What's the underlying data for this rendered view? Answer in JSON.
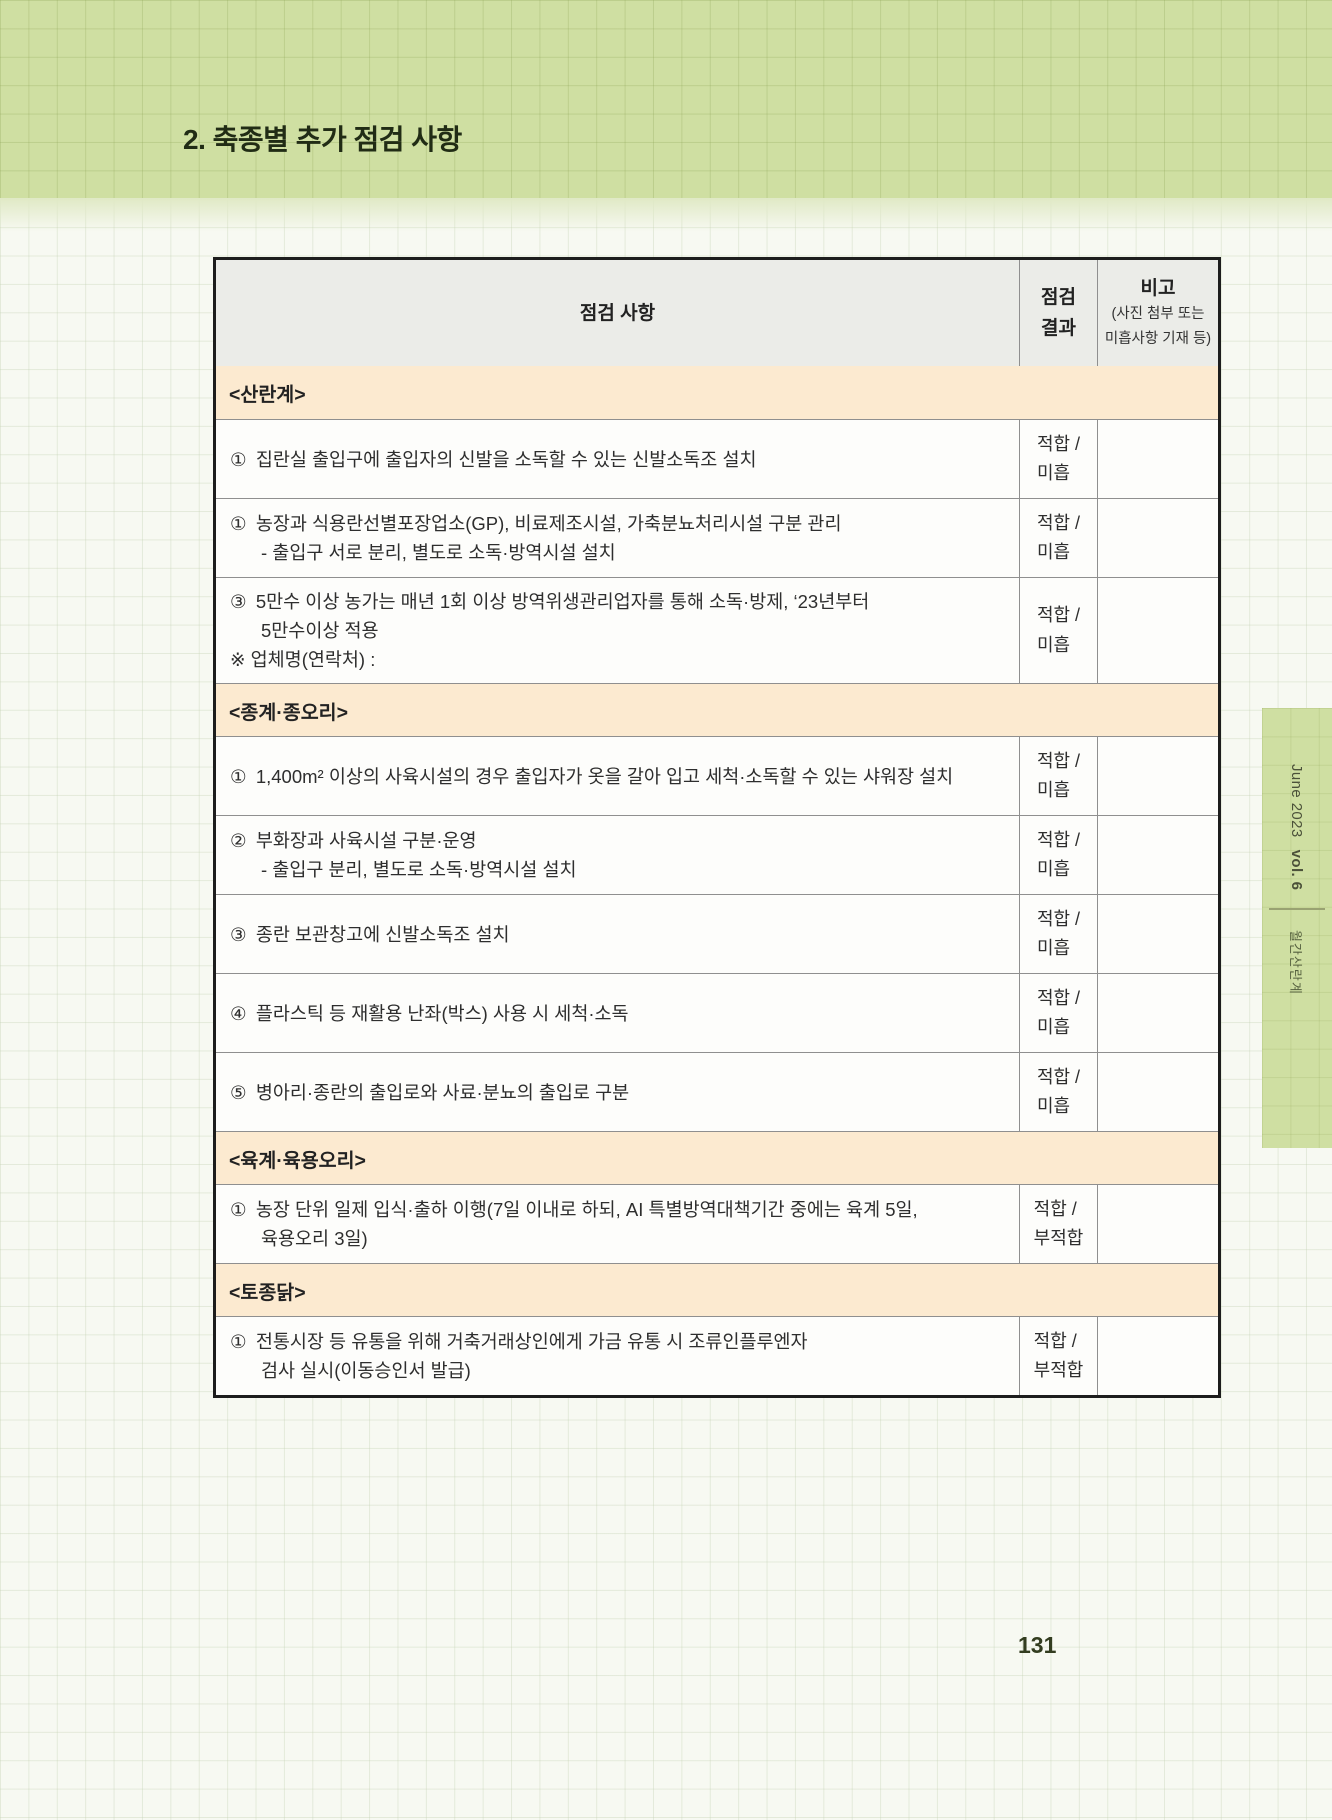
{
  "page": {
    "title": "2. 축종별 추가 점검 사항",
    "page_number": "131"
  },
  "sidebar": {
    "issue": "June 2023",
    "volume": "vol. 6",
    "magazine": "월간산란계"
  },
  "colors": {
    "band_green": "#cfdfa2",
    "section_tan": "#fcead0",
    "header_gray": "#ebece8"
  },
  "table": {
    "headers": {
      "item": "점검 사항",
      "result": "점검\n결과",
      "remark_title": "비고",
      "remark_sub": "(사진 첨부 또는\n미흡사항 기재 등)"
    },
    "rows": [
      {
        "type": "section",
        "text": "<산란계>"
      },
      {
        "type": "item",
        "lines": [
          {
            "t": "① 집란실 출입구에 출입자의 신발을 소독할 수 있는 신발소독조 설치",
            "i": 0
          }
        ],
        "result": "적합 /\n미흡"
      },
      {
        "type": "item",
        "lines": [
          {
            "t": "① 농장과 식용란선별포장업소(GP), 비료제조시설, 가축분뇨처리시설 구분 관리",
            "i": 0
          },
          {
            "t": "- 출입구 서로 분리, 별도로 소독·방역시설 설치",
            "i": 1
          }
        ],
        "result": "적합 /\n미흡"
      },
      {
        "type": "item",
        "lines": [
          {
            "t": "③ 5만수 이상 농가는 매년 1회 이상 방역위생관리업자를 통해 소독·방제, ‘23년부터",
            "i": 0
          },
          {
            "t": "5만수이상 적용",
            "i": 1
          },
          {
            "t": "※ 업체명(연락처) :",
            "i": 0
          }
        ],
        "result": "적합 /\n미흡"
      },
      {
        "type": "section",
        "text": "<종계·종오리>"
      },
      {
        "type": "item",
        "lines": [
          {
            "t": "① 1,400m² 이상의 사육시설의 경우 출입자가 옷을 갈아 입고 세척·소독할 수 있는 샤워장 설치",
            "i": 0
          }
        ],
        "result": "적합 /\n미흡"
      },
      {
        "type": "item",
        "lines": [
          {
            "t": "② 부화장과 사육시설 구분·운영",
            "i": 0
          },
          {
            "t": "- 출입구 분리, 별도로 소독·방역시설 설치",
            "i": 1
          }
        ],
        "result": "적합 /\n미흡"
      },
      {
        "type": "item",
        "lines": [
          {
            "t": "③ 종란 보관창고에 신발소독조 설치",
            "i": 0
          }
        ],
        "result": "적합 /\n미흡"
      },
      {
        "type": "item",
        "lines": [
          {
            "t": "④ 플라스틱 등 재활용 난좌(박스) 사용 시 세척·소독",
            "i": 0
          }
        ],
        "result": "적합 /\n미흡"
      },
      {
        "type": "item",
        "lines": [
          {
            "t": "⑤ 병아리·종란의 출입로와 사료·분뇨의 출입로 구분",
            "i": 0
          }
        ],
        "result": "적합 /\n미흡"
      },
      {
        "type": "section",
        "text": "<육계·육용오리>"
      },
      {
        "type": "item",
        "lines": [
          {
            "t": "① 농장 단위 일제 입식·출하 이행(7일 이내로 하되, AI 특별방역대책기간 중에는 육계 5일,",
            "i": 0
          },
          {
            "t": "육용오리 3일)",
            "i": 1
          }
        ],
        "result": "적합 /\n부적합"
      },
      {
        "type": "section",
        "text": "<토종닭>"
      },
      {
        "type": "item",
        "lines": [
          {
            "t": "① 전통시장 등 유통을 위해 거축거래상인에게 가금 유통 시 조류인플루엔자",
            "i": 0
          },
          {
            "t": "검사 실시(이동승인서 발급)",
            "i": 1
          }
        ],
        "result": "적합 /\n부적합"
      }
    ]
  }
}
